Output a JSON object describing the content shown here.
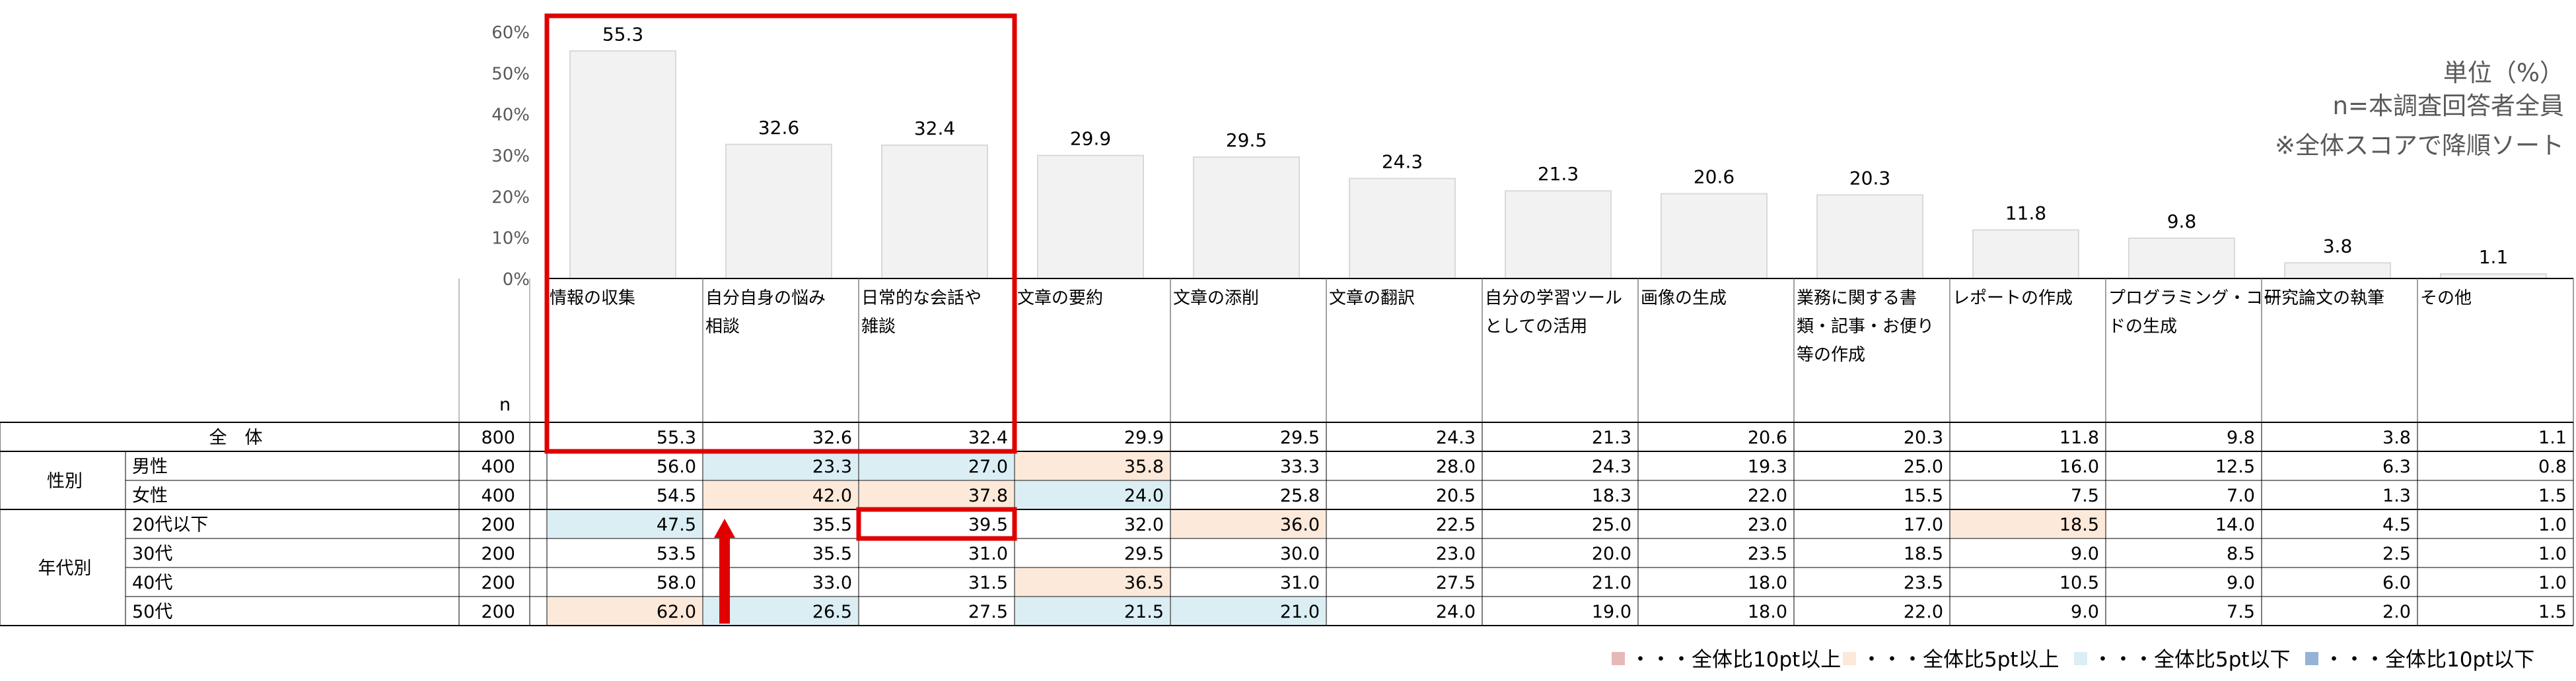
{
  "notes": {
    "unit": "単位（%）",
    "base": "n=本調査回答者全員",
    "sort": "※全体スコアで降順ソート"
  },
  "chart_data": {
    "type": "bar",
    "ylim": [
      0,
      60
    ],
    "yticks": [
      "0%",
      "10%",
      "20%",
      "30%",
      "40%",
      "50%",
      "60%"
    ],
    "categories": [
      "情報の収集",
      "自分自身の悩み相談",
      "日常的な会話や雑談",
      "文章の要約",
      "文章の添削",
      "文章の翻訳",
      "自分の学習ツールとしての活用",
      "画像の生成",
      "業務に関する書類・記事・お便り等の作成",
      "レポートの作成",
      "プログラミング・コードの生成",
      "研究論文の執筆",
      "その他"
    ],
    "category_lines": [
      [
        "情報の収集"
      ],
      [
        "自分自身の悩み",
        "相談"
      ],
      [
        "日常的な会話や",
        "雑談"
      ],
      [
        "文章の要約"
      ],
      [
        "文章の添削"
      ],
      [
        "文章の翻訳"
      ],
      [
        "自分の学習ツール",
        "としての活用"
      ],
      [
        "画像の生成"
      ],
      [
        "業務に関する書",
        "類・記事・お便り",
        "等の作成"
      ],
      [
        "レポートの作成"
      ],
      [
        "プログラミング・コー",
        "ドの生成"
      ],
      [
        "研究論文の執筆"
      ],
      [
        "その他"
      ]
    ],
    "values": [
      55.3,
      32.6,
      32.4,
      29.9,
      29.5,
      24.3,
      21.3,
      20.6,
      20.3,
      11.8,
      9.8,
      3.8,
      1.1
    ],
    "grid": false,
    "n_label": "n"
  },
  "table": {
    "rows": [
      {
        "group": "全　体",
        "label": "",
        "n": "800",
        "values": [
          "55.3",
          "32.6",
          "32.4",
          "29.9",
          "29.5",
          "24.3",
          "21.3",
          "20.6",
          "20.3",
          "11.8",
          "9.8",
          "3.8",
          "1.1"
        ],
        "marks": []
      },
      {
        "group": "性別",
        "label": "男性",
        "n": "400",
        "values": [
          "56.0",
          "23.3",
          "27.0",
          "35.8",
          "33.3",
          "28.0",
          "24.3",
          "19.3",
          "25.0",
          "16.0",
          "12.5",
          "6.3",
          "0.8"
        ],
        "marks": [
          "",
          "down5",
          "down5",
          "up5",
          "",
          "",
          "",
          "",
          "",
          "",
          "",
          "",
          ""
        ]
      },
      {
        "group": "",
        "label": "女性",
        "n": "400",
        "values": [
          "54.5",
          "42.0",
          "37.8",
          "24.0",
          "25.8",
          "20.5",
          "18.3",
          "22.0",
          "15.5",
          "7.5",
          "7.0",
          "1.3",
          "1.5"
        ],
        "marks": [
          "",
          "up5",
          "up5",
          "down5",
          "",
          "",
          "",
          "",
          "",
          "",
          "",
          "",
          ""
        ]
      },
      {
        "group": "年代別",
        "label": "20代以下",
        "n": "200",
        "values": [
          "47.5",
          "35.5",
          "39.5",
          "32.0",
          "36.0",
          "22.5",
          "25.0",
          "23.0",
          "17.0",
          "18.5",
          "14.0",
          "4.5",
          "1.0"
        ],
        "marks": [
          "down5",
          "",
          "",
          "",
          "up5",
          "",
          "",
          "",
          "",
          "up5",
          "",
          "",
          ""
        ]
      },
      {
        "group": "",
        "label": "30代",
        "n": "200",
        "values": [
          "53.5",
          "35.5",
          "31.0",
          "29.5",
          "30.0",
          "23.0",
          "20.0",
          "23.5",
          "18.5",
          "9.0",
          "8.5",
          "2.5",
          "1.0"
        ],
        "marks": [
          "",
          "",
          "",
          "",
          "",
          "",
          "",
          "",
          "",
          "",
          "",
          "",
          ""
        ]
      },
      {
        "group": "",
        "label": "40代",
        "n": "200",
        "values": [
          "58.0",
          "33.0",
          "31.5",
          "36.5",
          "31.0",
          "27.5",
          "21.0",
          "18.0",
          "23.5",
          "10.5",
          "9.0",
          "6.0",
          "1.0"
        ],
        "marks": [
          "",
          "",
          "",
          "up5",
          "",
          "",
          "",
          "",
          "",
          "",
          "",
          "",
          ""
        ]
      },
      {
        "group": "",
        "label": "50代",
        "n": "200",
        "values": [
          "62.0",
          "26.5",
          "27.5",
          "21.5",
          "21.0",
          "24.0",
          "19.0",
          "18.0",
          "22.0",
          "9.0",
          "7.5",
          "2.0",
          "1.5"
        ],
        "marks": [
          "up5",
          "down5",
          "",
          "down5",
          "down5",
          "",
          "",
          "",
          "",
          "",
          "",
          "",
          ""
        ]
      }
    ]
  },
  "legend": [
    {
      "key": "up10",
      "label": "・・・全体比10pt以上",
      "color": "#e6b9b8"
    },
    {
      "key": "up5",
      "label": "・・・全体比5pt以上",
      "color": "#fde9d9"
    },
    {
      "key": "down5",
      "label": "・・・全体比5pt以下",
      "color": "#daeef3"
    },
    {
      "key": "down10",
      "label": "・・・全体比10pt以下",
      "color": "#95b3d7"
    }
  ],
  "colors": {
    "bar_fill": "#f2f2f2",
    "bar_stroke": "#d9d9d9",
    "highlight": "#e00000",
    "grid": "#000000"
  }
}
